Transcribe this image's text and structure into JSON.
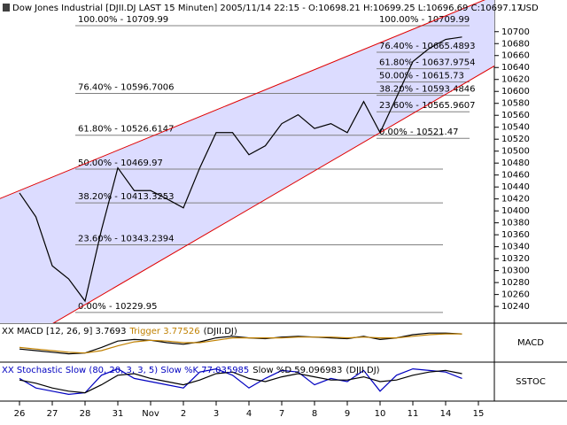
{
  "chart_data": [
    {
      "type": "line",
      "title": "Dow Jones Industrial [DJII.DJ LAST 15 Minuten] 2005/11/14 22:15 - O:10698.21 H:10699.25 L:10696.69 C:10697.17",
      "y_label": "USD",
      "categories": [
        "26",
        null,
        "27",
        null,
        "28",
        null,
        "31",
        null,
        "Nov",
        null,
        "2",
        null,
        "3",
        null,
        "4",
        null,
        "7",
        null,
        "8",
        null,
        "9",
        null,
        "10",
        null,
        "11",
        null,
        "14",
        null,
        "15"
      ],
      "series": [
        {
          "color": "#000000",
          "values": [
            10430,
            10390,
            10308,
            10286,
            10249,
            10368,
            10472,
            10434,
            10434,
            10420,
            10405,
            10472,
            10531,
            10531,
            10494,
            10509,
            10546,
            10561,
            10538,
            10546,
            10531,
            10583,
            10531,
            10590,
            10650,
            10672,
            10687,
            10691,
            null
          ]
        }
      ],
      "ylim": [
        10212,
        10753
      ],
      "yticks": [
        10240,
        10260,
        10280,
        10300,
        10320,
        10340,
        10360,
        10380,
        10400,
        10420,
        10440,
        10460,
        10480,
        10500,
        10520,
        10540,
        10560,
        10580,
        10600,
        10620,
        10640,
        10660,
        10680,
        10700
      ],
      "channel": {
        "x": [
          0,
          28
        ],
        "upper": [
          10434,
          10749
        ],
        "lower": [
          10179,
          10627
        ],
        "line_color": "#e00000",
        "fill": "#dcdcff"
      },
      "fib_left": [
        {
          "value": 10709.99,
          "label": "100.00% - 10709.99"
        },
        {
          "value": 10596.7006,
          "label": "76.40% - 10596.7006"
        },
        {
          "value": 10526.6147,
          "label": "61.80% - 10526.6147"
        },
        {
          "value": 10469.97,
          "label": "50.00% - 10469.97"
        },
        {
          "value": 10413.3253,
          "label": "38.20% - 10413.3253"
        },
        {
          "value": 10343.2394,
          "label": "23.60% - 10343.2394"
        },
        {
          "value": 10229.95,
          "label": "0.00% - 10229.95"
        }
      ],
      "fib_right": [
        {
          "value": 10709.99,
          "label": "100.00% - 10709.99"
        },
        {
          "value": 10665.4893,
          "label": "76.40% - 10665.4893"
        },
        {
          "value": 10637.9754,
          "label": "61.80% - 10637.9754"
        },
        {
          "value": 10615.73,
          "label": "50.00% - 10615.73"
        },
        {
          "value": 10593.4846,
          "label": "38.20% - 10593.4846"
        },
        {
          "value": 10565.9607,
          "label": "23.60% - 10565.9607"
        },
        {
          "value": 10521.47,
          "label": "0.00% - 10521.47"
        }
      ]
    },
    {
      "type": "line",
      "title": "XX MACD [12, 26, 9] 3.7693",
      "trigger_label": "Trigger 3.77526",
      "source": "(DJII.DJ)",
      "y_label": "MACD",
      "ylim": [
        -20,
        20
      ],
      "series": [
        {
          "color": "#000000",
          "values": [
            -8,
            -10,
            -12,
            -14,
            -13,
            -6,
            2,
            4,
            3,
            0,
            -2,
            1,
            6,
            8,
            6,
            5,
            7,
            8,
            7,
            6,
            5,
            8,
            4,
            6,
            10,
            12,
            12,
            11,
            null
          ]
        },
        {
          "color": "#c08000",
          "values": [
            -6,
            -8,
            -10,
            -12,
            -13,
            -10,
            -4,
            1,
            3,
            2,
            0,
            0,
            3,
            6,
            6,
            6,
            6,
            7,
            7,
            7,
            6,
            7,
            6,
            6,
            8,
            10,
            11,
            11,
            null
          ]
        }
      ]
    },
    {
      "type": "line",
      "title": "XX Stochastic Slow (80, 20, 3, 3, 5) Slow %K 77.035985",
      "d_label": "Slow %D 59.096983",
      "source": "(DJII.DJ)",
      "y_label": "SSTOC",
      "ylim": [
        0,
        100
      ],
      "series": [
        {
          "color": "#0000c0",
          "values": [
            60,
            30,
            20,
            10,
            15,
            70,
            90,
            60,
            50,
            40,
            30,
            80,
            90,
            70,
            30,
            60,
            85,
            80,
            40,
            60,
            50,
            85,
            20,
            70,
            90,
            85,
            80,
            60,
            null
          ]
        },
        {
          "color": "#000000",
          "values": [
            55,
            45,
            30,
            20,
            15,
            40,
            70,
            75,
            60,
            50,
            40,
            55,
            75,
            80,
            60,
            50,
            65,
            75,
            65,
            55,
            55,
            65,
            50,
            55,
            70,
            80,
            85,
            75,
            null
          ]
        }
      ]
    }
  ]
}
